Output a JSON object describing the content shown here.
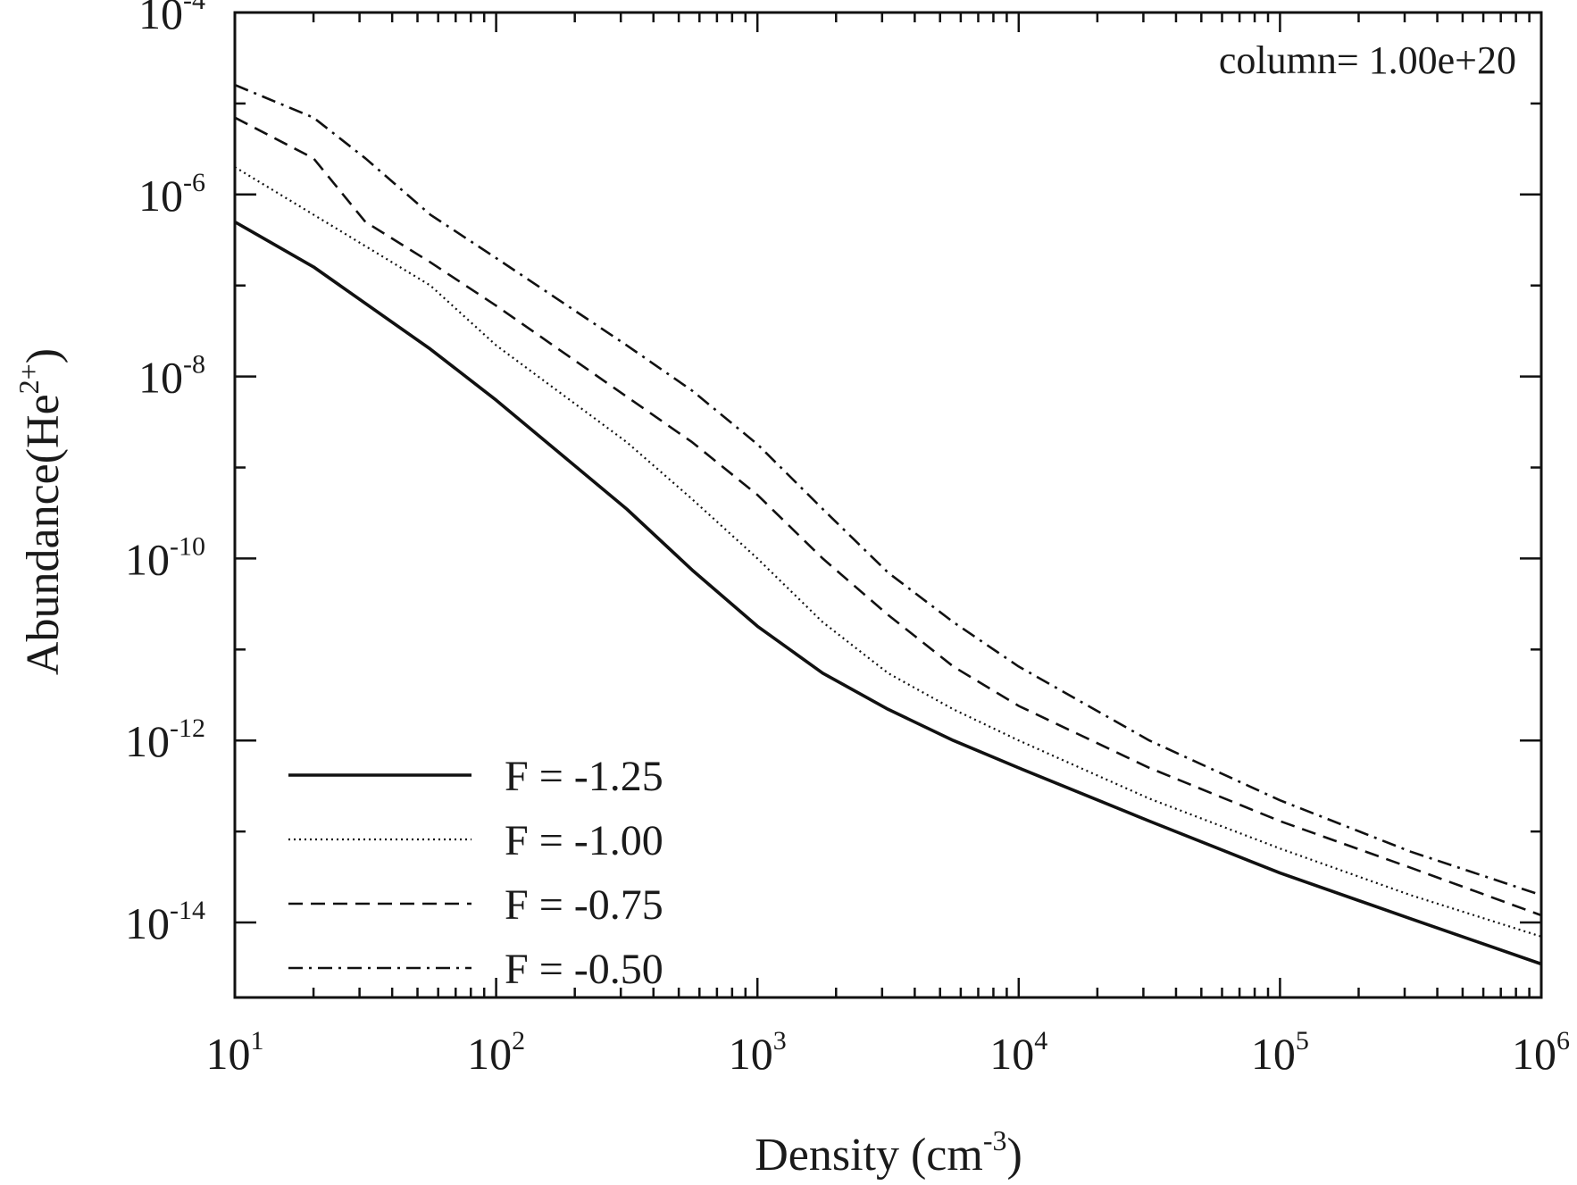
{
  "chart_data": {
    "type": "line",
    "x_scale": "log",
    "y_scale": "log",
    "xlim": [
      10,
      1000000
    ],
    "ylim": [
      1.5e-15,
      0.0001
    ],
    "xlabel": {
      "base": "Density (cm",
      "exp": "-3",
      "close": ")"
    },
    "ylabel": {
      "base": "Abundance(He",
      "exp": "2+",
      "close": ")"
    },
    "x_ticks": [
      {
        "base": "10",
        "exp": "1",
        "value": 10
      },
      {
        "base": "10",
        "exp": "2",
        "value": 100
      },
      {
        "base": "10",
        "exp": "3",
        "value": 1000
      },
      {
        "base": "10",
        "exp": "4",
        "value": 10000
      },
      {
        "base": "10",
        "exp": "5",
        "value": 100000
      },
      {
        "base": "10",
        "exp": "6",
        "value": 1000000
      }
    ],
    "y_ticks": [
      {
        "base": "10",
        "exp": "-14",
        "value": 1e-14
      },
      {
        "base": "10",
        "exp": "-12",
        "value": 1e-12
      },
      {
        "base": "10",
        "exp": "-10",
        "value": 1e-10
      },
      {
        "base": "10",
        "exp": "-8",
        "value": 1e-08
      },
      {
        "base": "10",
        "exp": "-6",
        "value": 1e-06
      },
      {
        "base": "10",
        "exp": "-4",
        "value": 0.0001
      }
    ],
    "annotation": "column= 1.00e+20",
    "legend_position": "bottom-left",
    "grid": false,
    "line_color": "#111111",
    "series": [
      {
        "name": "F = -1.25",
        "dash": "solid",
        "x": [
          10,
          20,
          56,
          100,
          316,
          562,
          1000,
          1778,
          3162,
          5623,
          10000,
          31623,
          100000,
          316228,
          1000000
        ],
        "y": [
          5e-07,
          1.6e-07,
          2e-08,
          5.5e-09,
          3.5e-10,
          7.5e-11,
          1.8e-11,
          5.5e-12,
          2.2e-12,
          1e-12,
          5e-13,
          1.3e-13,
          3.5e-14,
          1.1e-14,
          3.5e-15
        ]
      },
      {
        "name": "F = -1.00",
        "dash": "dotted",
        "x": [
          10,
          20,
          56,
          100,
          316,
          562,
          1000,
          1778,
          3162,
          5623,
          10000,
          31623,
          100000,
          316228,
          1000000
        ],
        "y": [
          2e-06,
          6e-07,
          1e-07,
          2.2e-08,
          1.9e-09,
          4.5e-10,
          1e-10,
          2e-11,
          5.5e-12,
          2.2e-12,
          1e-12,
          2.3e-13,
          6.5e-14,
          2e-14,
          7e-15
        ]
      },
      {
        "name": "F = -0.75",
        "dash": "dashed",
        "x": [
          10,
          20,
          31.6,
          56,
          100,
          316,
          562,
          1000,
          1778,
          3162,
          5623,
          10000,
          31623,
          100000,
          316228,
          1000000
        ],
        "y": [
          7e-06,
          2.5e-06,
          5e-07,
          1.8e-07,
          6e-08,
          6e-09,
          1.9e-09,
          5e-10,
          1e-10,
          2.4e-11,
          6.5e-12,
          2.4e-12,
          5e-13,
          1.3e-13,
          4e-14,
          1.2e-14
        ]
      },
      {
        "name": "F = -0.50",
        "dash": "dashdot",
        "x": [
          10,
          20,
          31.6,
          56,
          100,
          316,
          562,
          1000,
          1778,
          3162,
          5623,
          10000,
          31623,
          100000,
          316228,
          1000000
        ],
        "y": [
          1.6e-05,
          7e-06,
          2.5e-06,
          6e-07,
          2e-07,
          2.2e-08,
          7e-09,
          1.8e-09,
          3.5e-10,
          7e-11,
          2e-11,
          6.5e-12,
          1e-12,
          2.2e-13,
          6e-14,
          2e-14
        ]
      }
    ]
  }
}
